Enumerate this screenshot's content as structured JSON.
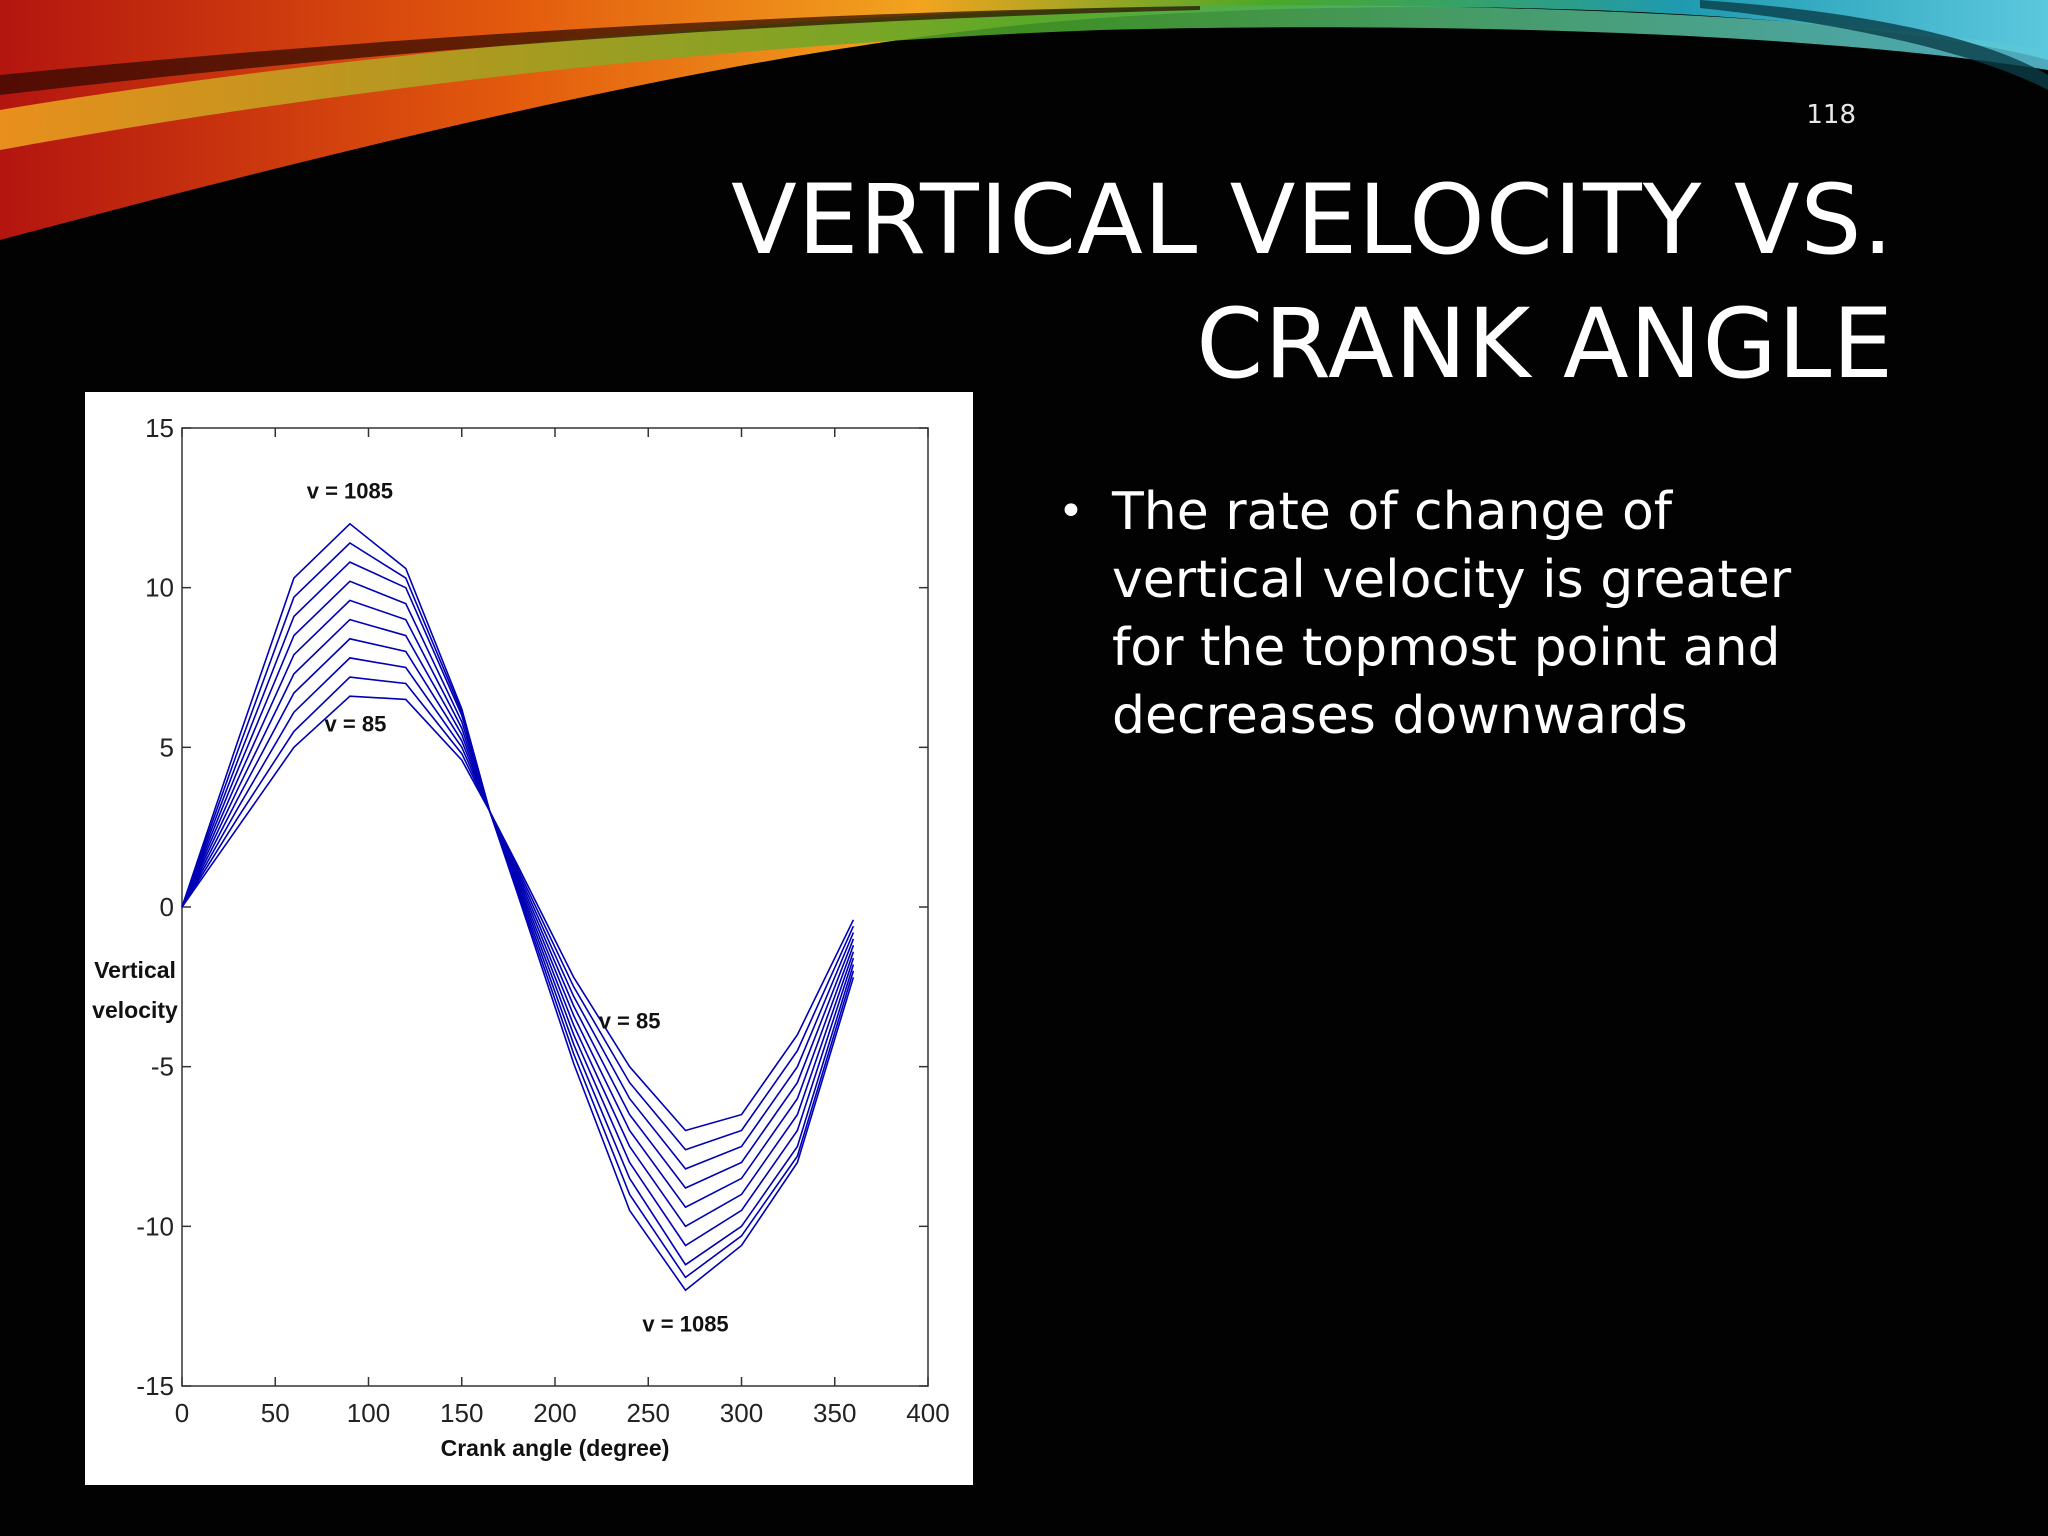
{
  "slide": {
    "number": "118",
    "title_lines": [
      "VERTICAL VELOCITY VS.",
      "CRANK ANGLE"
    ],
    "bullets": [
      "The rate of change of vertical velocity is greater for the topmost point and decreases downwards"
    ],
    "bullet_glyph": "•",
    "accent_colors": [
      "#b3150f",
      "#e35a0d",
      "#f2a41f",
      "#4aa829",
      "#1f9ab0",
      "#5cc8de"
    ]
  },
  "chart_data": {
    "type": "line",
    "xlabel": "Crank angle (degree)",
    "ylabel_lines": [
      "Vertical",
      "velocity"
    ],
    "xlim": [
      0,
      400
    ],
    "ylim": [
      -15,
      15
    ],
    "xticks": [
      0,
      50,
      100,
      150,
      200,
      250,
      300,
      350,
      400
    ],
    "yticks": [
      15,
      10,
      5,
      0,
      -5,
      -10,
      -15
    ],
    "series_color": "#0000b4",
    "x": [
      0,
      30,
      60,
      90,
      120,
      150,
      165,
      180,
      210,
      240,
      270,
      300,
      330,
      360
    ],
    "series": [
      {
        "values": [
          0,
          2.5,
          5.0,
          6.6,
          6.5,
          4.6,
          3.0,
          1.3,
          -2.2,
          -5.0,
          -7.0,
          -6.5,
          -4.0,
          -0.4
        ]
      },
      {
        "values": [
          0,
          2.8,
          5.5,
          7.2,
          7.0,
          4.8,
          3.0,
          1.2,
          -2.5,
          -5.5,
          -7.6,
          -7.0,
          -4.5,
          -0.6
        ]
      },
      {
        "values": [
          0,
          3.1,
          6.1,
          7.8,
          7.5,
          5.0,
          3.0,
          1.1,
          -2.8,
          -6.0,
          -8.2,
          -7.5,
          -5.0,
          -0.8
        ]
      },
      {
        "values": [
          0,
          3.4,
          6.7,
          8.4,
          8.0,
          5.2,
          3.0,
          1.0,
          -3.1,
          -6.5,
          -8.8,
          -8.0,
          -5.5,
          -1.0
        ]
      },
      {
        "values": [
          0,
          3.7,
          7.3,
          9.0,
          8.5,
          5.4,
          3.0,
          0.9,
          -3.4,
          -7.0,
          -9.4,
          -8.5,
          -6.0,
          -1.2
        ]
      },
      {
        "values": [
          0,
          4.0,
          7.9,
          9.6,
          9.0,
          5.6,
          3.0,
          0.8,
          -3.7,
          -7.5,
          -10.0,
          -9.0,
          -6.5,
          -1.4
        ]
      },
      {
        "values": [
          0,
          4.3,
          8.5,
          10.2,
          9.5,
          5.8,
          3.0,
          0.7,
          -4.0,
          -8.0,
          -10.6,
          -9.5,
          -7.0,
          -1.6
        ]
      },
      {
        "values": [
          0,
          4.6,
          9.1,
          10.8,
          10.0,
          6.0,
          3.0,
          0.6,
          -4.3,
          -8.5,
          -11.2,
          -10.0,
          -7.5,
          -1.8
        ]
      },
      {
        "values": [
          0,
          4.9,
          9.7,
          11.4,
          10.3,
          6.1,
          3.0,
          0.5,
          -4.6,
          -9.0,
          -11.6,
          -10.3,
          -7.8,
          -2.0
        ]
      },
      {
        "values": [
          0,
          5.2,
          10.3,
          12.0,
          10.6,
          6.2,
          3.0,
          0.4,
          -4.9,
          -9.5,
          -12.0,
          -10.6,
          -8.0,
          -2.2
        ]
      }
    ],
    "annotations": [
      {
        "text": "v = 1085",
        "x": 90,
        "y": 12.8
      },
      {
        "text": "v = 85",
        "x": 93,
        "y": 5.5
      },
      {
        "text": "v = 85",
        "x": 240,
        "y": -3.8
      },
      {
        "text": "v = 1085",
        "x": 270,
        "y": -13.3
      }
    ]
  }
}
